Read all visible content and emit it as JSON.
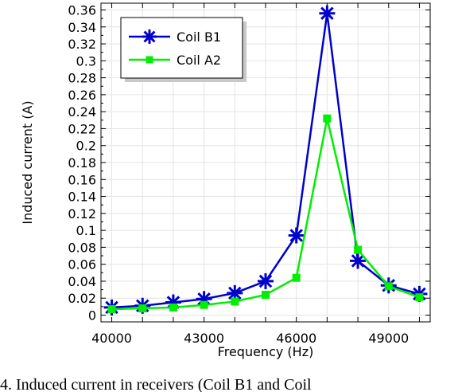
{
  "chart_data": {
    "type": "line",
    "xlabel": "Frequency (Hz)",
    "ylabel": "Induced current (A)",
    "xlim": [
      39650,
      50350
    ],
    "ylim": [
      -0.008,
      0.368
    ],
    "x_ticks": [
      40000,
      43000,
      46000,
      49000
    ],
    "x_minor_ticks": [
      41000,
      42000,
      44000,
      45000,
      47000,
      48000,
      50000
    ],
    "y_ticks": [
      0,
      0.02,
      0.04,
      0.06,
      0.08,
      0.1,
      0.12,
      0.14,
      0.16,
      0.18,
      0.2,
      0.22,
      0.24,
      0.26,
      0.28,
      0.3,
      0.32,
      0.34,
      0.36
    ],
    "y_tick_labels": [
      "0",
      "0.02",
      "0.04",
      "0.06",
      "0.08",
      "0.1",
      "0.12",
      "0.14",
      "0.16",
      "0.18",
      "0.2",
      "0.22",
      "0.24",
      "0.26",
      "0.28",
      "0.3",
      "0.32",
      "0.34",
      "0.36"
    ],
    "grid": true,
    "legend_position": "top-left",
    "x": [
      40000,
      41000,
      42000,
      43000,
      44000,
      45000,
      46000,
      47000,
      48000,
      49000,
      50000
    ],
    "series": [
      {
        "name": "Coil B1",
        "color": "#0000cc",
        "marker": "asterisk",
        "values": [
          0.009,
          0.011,
          0.015,
          0.019,
          0.026,
          0.04,
          0.094,
          0.356,
          0.064,
          0.035,
          0.025
        ]
      },
      {
        "name": "Coil A2",
        "color": "#00ee00",
        "marker": "square",
        "values": [
          0.007,
          0.008,
          0.009,
          0.012,
          0.016,
          0.024,
          0.044,
          0.232,
          0.077,
          0.034,
          0.021
        ]
      }
    ]
  },
  "caption": "4. Induced current in receivers (Coil B1 and Coil"
}
